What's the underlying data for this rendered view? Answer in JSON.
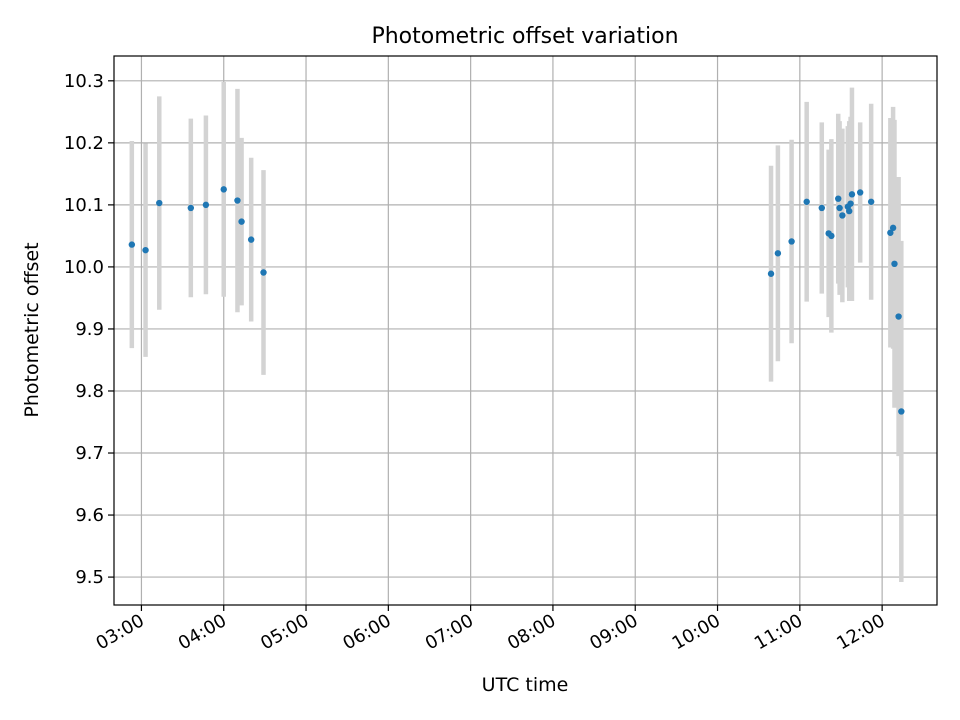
{
  "chart_data": {
    "type": "scatter",
    "title": "Photometric offset variation",
    "xlabel": "UTC time",
    "ylabel": "Photometric offset",
    "x_unit": "time of day (HH:MM UTC)",
    "xlim": [
      "02:40",
      "12:40"
    ],
    "ylim": [
      9.455,
      10.34
    ],
    "x_ticks": [
      "03:00",
      "04:00",
      "05:00",
      "06:00",
      "07:00",
      "08:00",
      "09:00",
      "10:00",
      "11:00",
      "12:00"
    ],
    "y_ticks": [
      "9.5",
      "9.6",
      "9.7",
      "9.8",
      "9.9",
      "10.0",
      "10.1",
      "10.2",
      "10.3"
    ],
    "grid": true,
    "marker_color": "#1f77b4",
    "errorbar_color": "#d3d3d3",
    "series": [
      {
        "points": [
          {
            "x": "02:53",
            "y": 10.036,
            "err": 0.167
          },
          {
            "x": "03:03",
            "y": 10.027,
            "err": 0.172
          },
          {
            "x": "03:13",
            "y": 10.103,
            "err": 0.172
          },
          {
            "x": "03:36",
            "y": 10.095,
            "err": 0.144
          },
          {
            "x": "03:47",
            "y": 10.1,
            "err": 0.144
          },
          {
            "x": "04:00",
            "y": 10.125,
            "err": 0.173
          },
          {
            "x": "04:10",
            "y": 10.107,
            "err": 0.18
          },
          {
            "x": "04:13",
            "y": 10.073,
            "err": 0.135
          },
          {
            "x": "04:20",
            "y": 10.044,
            "err": 0.132
          },
          {
            "x": "04:29",
            "y": 9.991,
            "err": 0.165
          },
          {
            "x": "10:39",
            "y": 9.989,
            "err": 0.174
          },
          {
            "x": "10:44",
            "y": 10.022,
            "err": 0.174
          },
          {
            "x": "10:54",
            "y": 10.041,
            "err": 0.164
          },
          {
            "x": "11:05",
            "y": 10.105,
            "err": 0.161
          },
          {
            "x": "11:16",
            "y": 10.095,
            "err": 0.138
          },
          {
            "x": "11:21",
            "y": 10.054,
            "err": 0.135
          },
          {
            "x": "11:23",
            "y": 10.05,
            "err": 0.156
          },
          {
            "x": "11:28",
            "y": 10.11,
            "err": 0.137
          },
          {
            "x": "11:29",
            "y": 10.095,
            "err": 0.14
          },
          {
            "x": "11:31",
            "y": 10.083,
            "err": 0.14
          },
          {
            "x": "11:35",
            "y": 10.097,
            "err": 0.13
          },
          {
            "x": "11:36",
            "y": 10.09,
            "err": 0.145
          },
          {
            "x": "11:37",
            "y": 10.102,
            "err": 0.14
          },
          {
            "x": "11:38",
            "y": 10.117,
            "err": 0.172
          },
          {
            "x": "11:44",
            "y": 10.12,
            "err": 0.113
          },
          {
            "x": "11:52",
            "y": 10.105,
            "err": 0.158
          },
          {
            "x": "12:06",
            "y": 10.055,
            "err": 0.185
          },
          {
            "x": "12:08",
            "y": 10.063,
            "err": 0.195
          },
          {
            "x": "12:09",
            "y": 10.005,
            "err": 0.232
          },
          {
            "x": "12:12",
            "y": 9.92,
            "err": 0.225
          },
          {
            "x": "12:14",
            "y": 9.767,
            "err": 0.275
          }
        ]
      }
    ]
  }
}
